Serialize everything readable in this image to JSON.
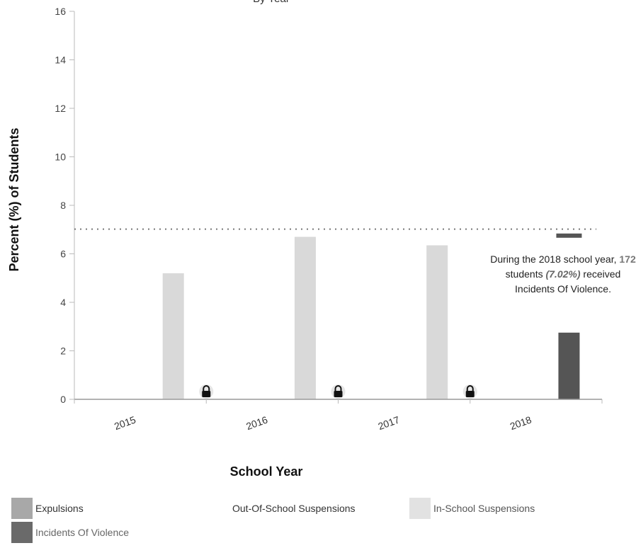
{
  "chart_data": {
    "type": "bar",
    "title": "By Year",
    "xlabel": "School Year",
    "ylabel": "Percent (%) of Students",
    "ylim": [
      0,
      16
    ],
    "yticks": [
      "0",
      "2",
      "4",
      "6",
      "8",
      "10",
      "12",
      "14",
      "16"
    ],
    "categories": [
      "2015",
      "2016",
      "2017",
      "2018"
    ],
    "series": [
      {
        "name": "Expulsions",
        "values": [
          null,
          null,
          null,
          null
        ],
        "color": "#b0b0b0"
      },
      {
        "name": "Out-Of-School Suspensions",
        "values": [
          null,
          null,
          null,
          null
        ],
        "color": "#9a9a9a"
      },
      {
        "name": "In-School Suspensions",
        "values": [
          5.2,
          6.7,
          6.35,
          null
        ],
        "color": "#d9d9d9"
      },
      {
        "name": "Incidents Of Violence",
        "values": [
          null,
          null,
          null,
          2.75
        ],
        "color": "#555555"
      }
    ],
    "suppressed_markers": [
      "2015",
      "2016",
      "2017"
    ],
    "reference_line": {
      "value": 7.02
    },
    "reference_marker": {
      "value": 6.75
    },
    "annotation": {
      "prefix": "During the 2018 school year,",
      "count": "172",
      "middle": "students",
      "percent": "(7.02%)",
      "suffix": "received Incidents Of Violence."
    },
    "grid": false,
    "legend_position": "bottom-left"
  },
  "legend": [
    {
      "label": "Expulsions",
      "color": "#a8a8a8"
    },
    {
      "label": "Out-Of-School Suspensions",
      "color": ""
    },
    {
      "label": "In-School Suspensions",
      "color": "#e2e2e2"
    },
    {
      "label": "Incidents Of Violence",
      "color": "#6a6a6a"
    }
  ]
}
